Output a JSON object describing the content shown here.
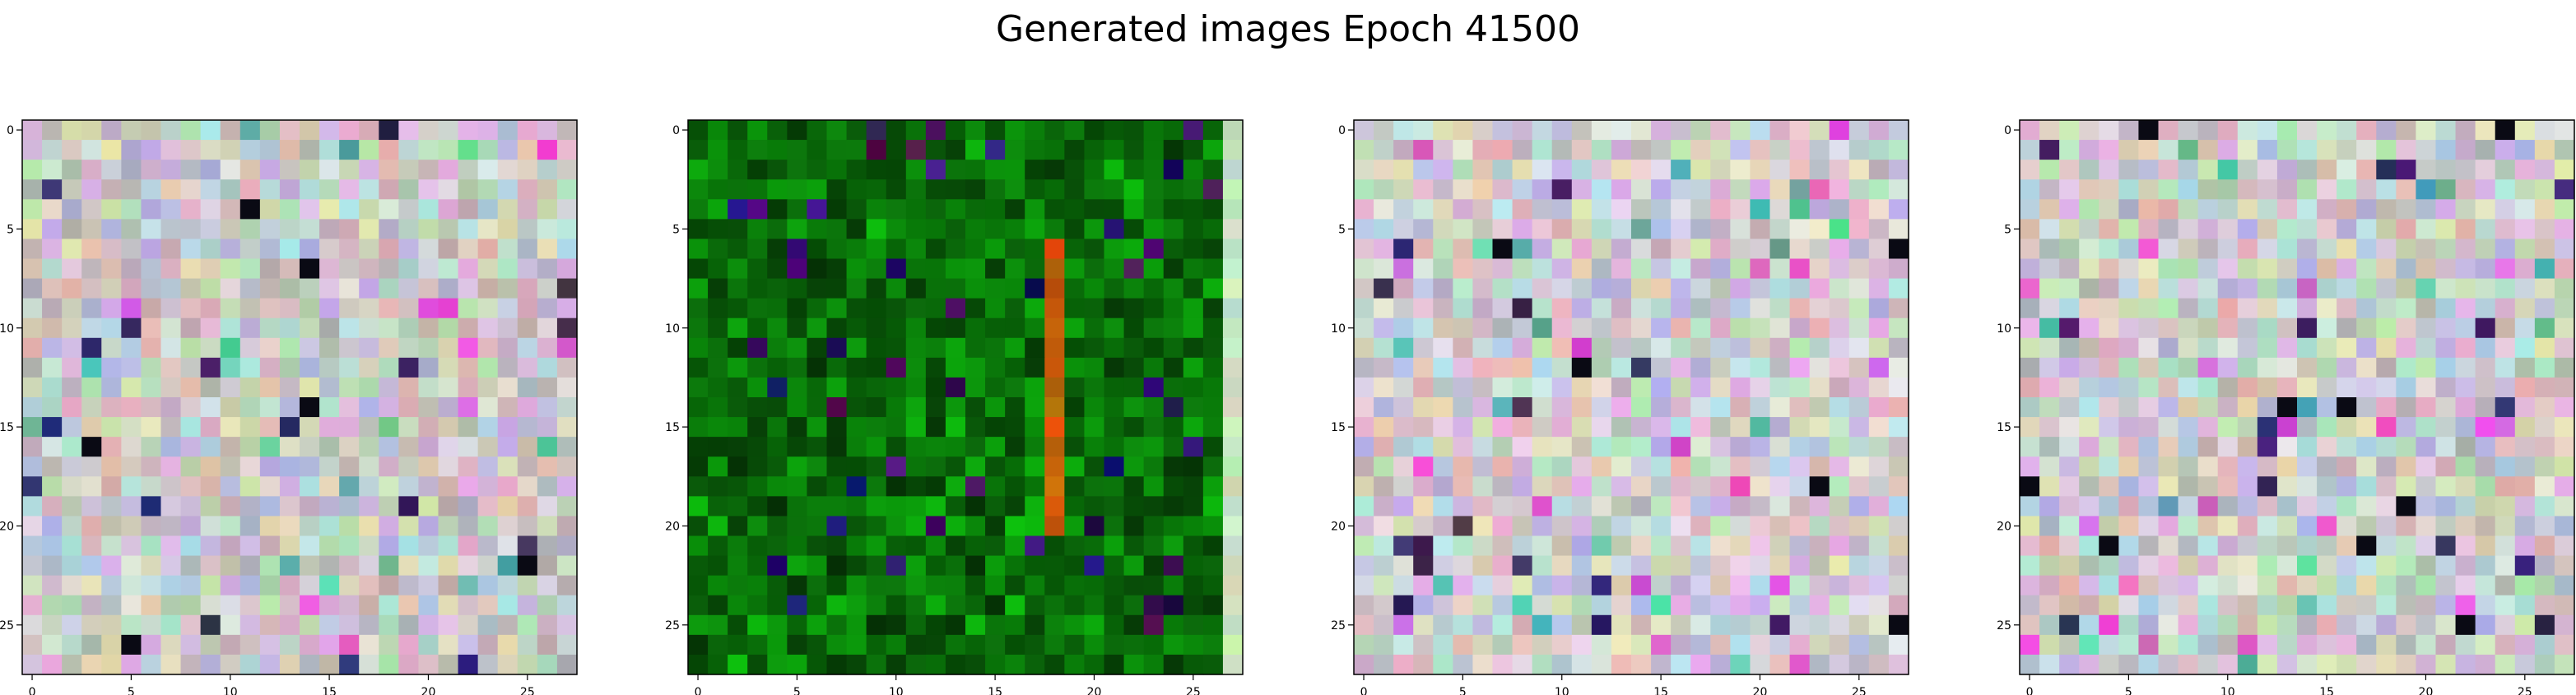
{
  "figure": {
    "title": "Generated images Epoch 41500"
  },
  "chart_data": {
    "type": "heatmap",
    "title": "Generated images Epoch 41500",
    "grid": false,
    "image_shape": [
      28,
      28
    ],
    "panels": [
      {
        "name": "",
        "base_color": "#c8c8c8",
        "xlim": [
          -0.5,
          27.5
        ],
        "ylim": [
          27.5,
          -0.5
        ],
        "x_ticks": [
          0,
          5,
          10,
          15,
          20,
          25
        ],
        "y_ticks": [
          0,
          5,
          10,
          15,
          20,
          25
        ],
        "x_tick_labels": [
          "0",
          "5",
          "10",
          "15",
          "20",
          "25"
        ],
        "y_tick_labels": [
          "0",
          "5",
          "10",
          "15",
          "20",
          "25"
        ]
      },
      {
        "name": "",
        "base_color": "#128a12",
        "xlim": [
          -0.5,
          27.5
        ],
        "ylim": [
          27.5,
          -0.5
        ],
        "x_ticks": [
          0,
          5,
          10,
          15,
          20,
          25
        ],
        "y_ticks": [
          0,
          5,
          10,
          15,
          20,
          25
        ],
        "x_tick_labels": [
          "0",
          "5",
          "10",
          "15",
          "20",
          "25"
        ],
        "y_tick_labels": [
          "0",
          "5",
          "10",
          "15",
          "20",
          "25"
        ]
      },
      {
        "name": "",
        "base_color": "#cfcacf",
        "xlim": [
          -0.5,
          27.5
        ],
        "ylim": [
          27.5,
          -0.5
        ],
        "x_ticks": [
          0,
          5,
          10,
          15,
          20,
          25
        ],
        "y_ticks": [
          0,
          5,
          10,
          15,
          20,
          25
        ],
        "x_tick_labels": [
          "0",
          "5",
          "10",
          "15",
          "20",
          "25"
        ],
        "y_tick_labels": [
          "0",
          "5",
          "10",
          "15",
          "20",
          "25"
        ]
      },
      {
        "name": "",
        "base_color": "#c9cbc9",
        "xlim": [
          -0.5,
          27.5
        ],
        "ylim": [
          27.5,
          -0.5
        ],
        "x_ticks": [
          0,
          5,
          10,
          15,
          20,
          25
        ],
        "y_ticks": [
          0,
          5,
          10,
          15,
          20,
          25
        ],
        "x_tick_labels": [
          "0",
          "5",
          "10",
          "15",
          "20",
          "25"
        ],
        "y_tick_labels": [
          "0",
          "5",
          "10",
          "15",
          "20",
          "25"
        ]
      }
    ]
  }
}
